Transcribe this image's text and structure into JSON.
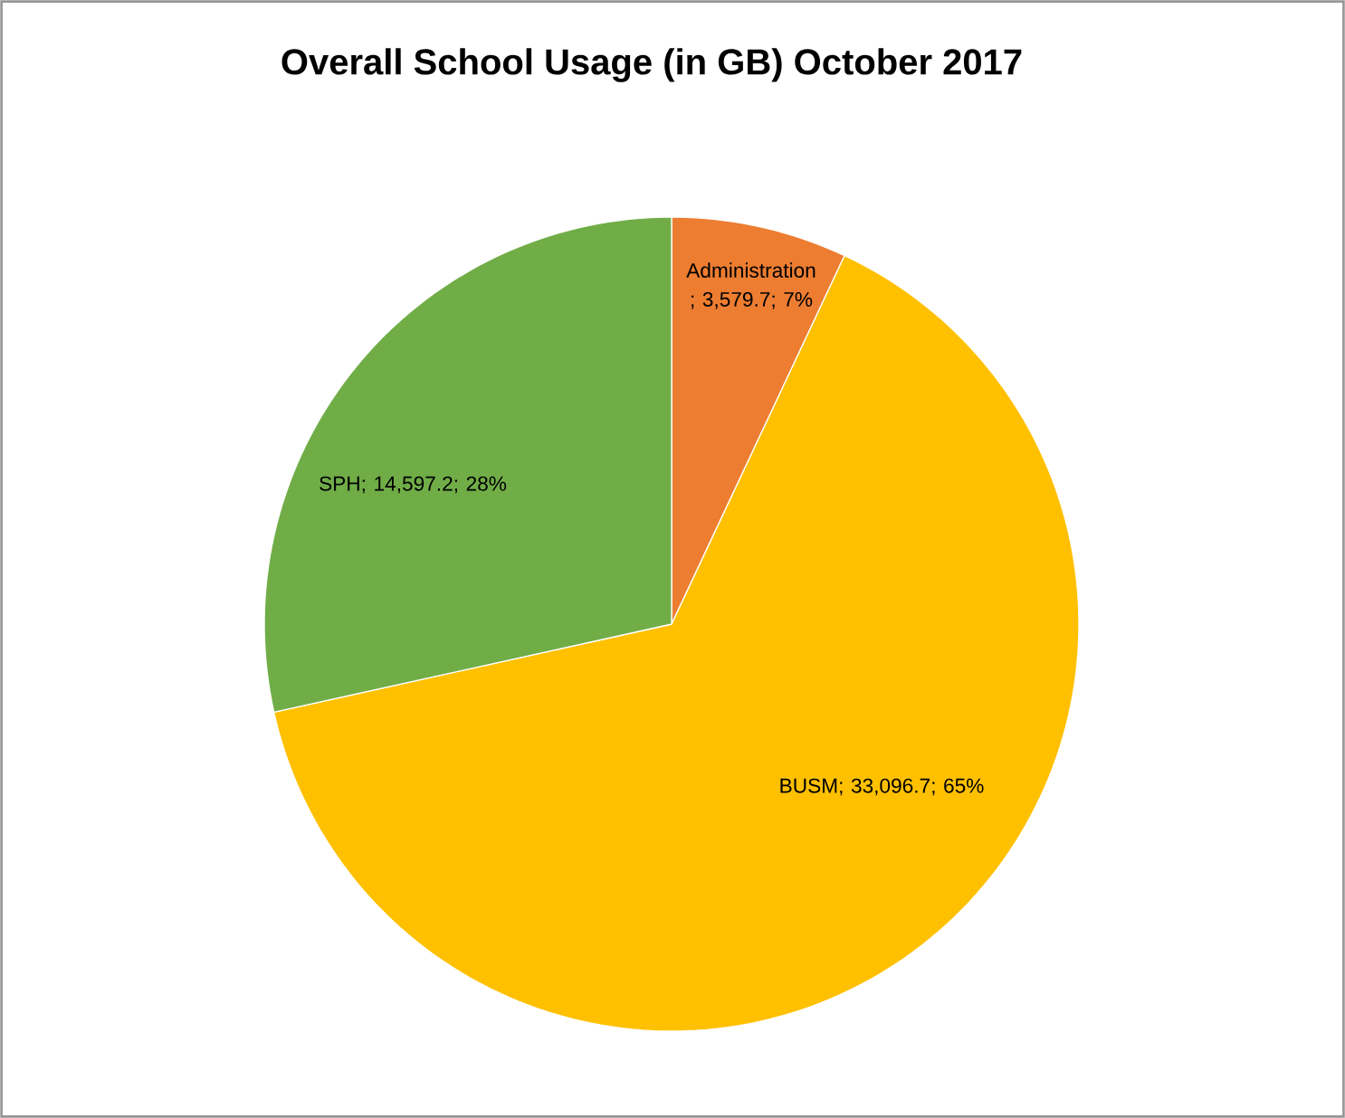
{
  "chart_data": {
    "type": "pie",
    "title": "Overall School Usage (in GB) October 2017",
    "categories": [
      "Administration",
      "BUSM",
      "SPH"
    ],
    "values": [
      3579.7,
      33096.7,
      14597.2
    ],
    "colors": [
      "#ed7d31",
      "#ffc000",
      "#70ad47"
    ],
    "value_labels": [
      "; 3,579.7; 7%",
      "; 33,096.7; 65%",
      "; 14,597.2; 28%"
    ]
  }
}
